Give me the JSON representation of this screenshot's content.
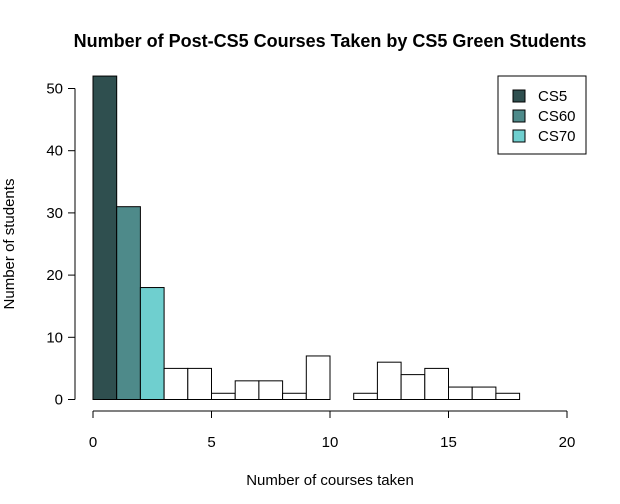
{
  "colors": {
    "cs5": "#2f4f4f",
    "cs60": "#4e8a8a",
    "cs70": "#6fcfcf",
    "other": "#ffffff",
    "stroke": "#000000"
  },
  "chart_data": {
    "type": "bar",
    "title": "Number of Post-CS5 Courses Taken by CS5 Green Students",
    "xlabel": "Number of courses taken",
    "ylabel": "Number of students",
    "xlim": [
      0,
      20
    ],
    "ylim": [
      0,
      52
    ],
    "x_ticks": [
      "0",
      "5",
      "10",
      "15",
      "20"
    ],
    "y_ticks": [
      "0",
      "10",
      "20",
      "30",
      "40",
      "50"
    ],
    "grid": false,
    "legend_position": "top-right",
    "legend": [
      {
        "label": "CS5",
        "color_key": "cs5"
      },
      {
        "label": "CS60",
        "color_key": "cs60"
      },
      {
        "label": "CS70",
        "color_key": "cs70"
      }
    ],
    "bin_width": 1,
    "bins": [
      {
        "x_start": 0,
        "value": 52,
        "color_key": "cs5"
      },
      {
        "x_start": 1,
        "value": 31,
        "color_key": "cs60"
      },
      {
        "x_start": 2,
        "value": 18,
        "color_key": "cs70"
      },
      {
        "x_start": 3,
        "value": 5,
        "color_key": "other"
      },
      {
        "x_start": 4,
        "value": 5,
        "color_key": "other"
      },
      {
        "x_start": 5,
        "value": 1,
        "color_key": "other"
      },
      {
        "x_start": 6,
        "value": 3,
        "color_key": "other"
      },
      {
        "x_start": 7,
        "value": 3,
        "color_key": "other"
      },
      {
        "x_start": 8,
        "value": 1,
        "color_key": "other"
      },
      {
        "x_start": 9,
        "value": 7,
        "color_key": "other"
      },
      {
        "x_start": 10,
        "value": 0,
        "color_key": "other"
      },
      {
        "x_start": 11,
        "value": 1,
        "color_key": "other"
      },
      {
        "x_start": 12,
        "value": 6,
        "color_key": "other"
      },
      {
        "x_start": 13,
        "value": 4,
        "color_key": "other"
      },
      {
        "x_start": 14,
        "value": 5,
        "color_key": "other"
      },
      {
        "x_start": 15,
        "value": 2,
        "color_key": "other"
      },
      {
        "x_start": 16,
        "value": 2,
        "color_key": "other"
      },
      {
        "x_start": 17,
        "value": 1,
        "color_key": "other"
      }
    ]
  }
}
